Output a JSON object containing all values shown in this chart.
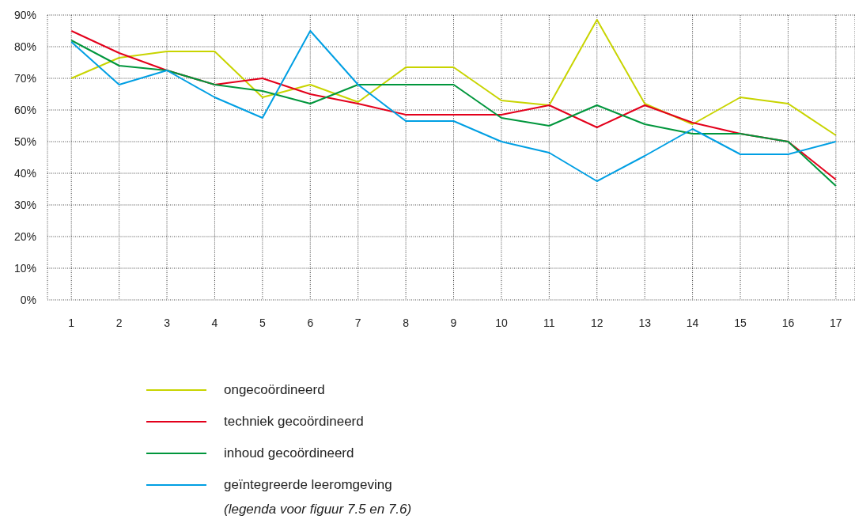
{
  "chart_data": {
    "type": "line",
    "x": [
      1,
      2,
      3,
      4,
      5,
      6,
      7,
      8,
      9,
      10,
      11,
      12,
      13,
      14,
      15,
      16,
      17
    ],
    "series": [
      {
        "name": "ongecoördineerd",
        "color": "#c8d400",
        "values": [
          70,
          76.5,
          78.5,
          78.5,
          64,
          68,
          62.5,
          73.5,
          73.5,
          63,
          61.5,
          88.5,
          62,
          55.5,
          64,
          62,
          52
        ]
      },
      {
        "name": "techniek gecoördineerd",
        "color": "#e3001b",
        "values": [
          85,
          78,
          72.5,
          68,
          70,
          65,
          62,
          58.5,
          58.5,
          58.5,
          61.5,
          54.5,
          61.5,
          56,
          52.5,
          50,
          38
        ]
      },
      {
        "name": "inhoud gecoördineerd",
        "color": "#00963c",
        "values": [
          82,
          74,
          72.5,
          68,
          66,
          62,
          68,
          68,
          68,
          57.5,
          55,
          61.5,
          55.5,
          52.5,
          52.5,
          50,
          36
        ]
      },
      {
        "name": "geïntegreerde leeromgeving",
        "color": "#009fe3",
        "values": [
          81.5,
          68,
          72.5,
          64,
          57.5,
          85,
          68,
          56.5,
          56.5,
          50,
          46.5,
          37.5,
          45.5,
          54,
          46,
          46,
          50
        ]
      }
    ],
    "xlim": [
      0.5,
      17.4
    ],
    "xticks": [
      1,
      2,
      3,
      4,
      5,
      6,
      7,
      8,
      9,
      10,
      11,
      12,
      13,
      14,
      15,
      16,
      17
    ],
    "ylim": [
      0,
      90
    ],
    "yticks": [
      {
        "value": 0,
        "label": "0%"
      },
      {
        "value": 10,
        "label": "10%"
      },
      {
        "value": 20,
        "label": "20%"
      },
      {
        "value": 30,
        "label": "30%"
      },
      {
        "value": 40,
        "label": "40%"
      },
      {
        "value": 50,
        "label": "50%"
      },
      {
        "value": 60,
        "label": "60%"
      },
      {
        "value": 70,
        "label": "70%"
      },
      {
        "value": 80,
        "label": "80%"
      },
      {
        "value": 90,
        "label": "90%"
      }
    ],
    "grid": true,
    "legend": "bottom",
    "line_style": "solid",
    "annotations": [
      "(legenda voor figuur 7.5 en 7.6)"
    ]
  }
}
